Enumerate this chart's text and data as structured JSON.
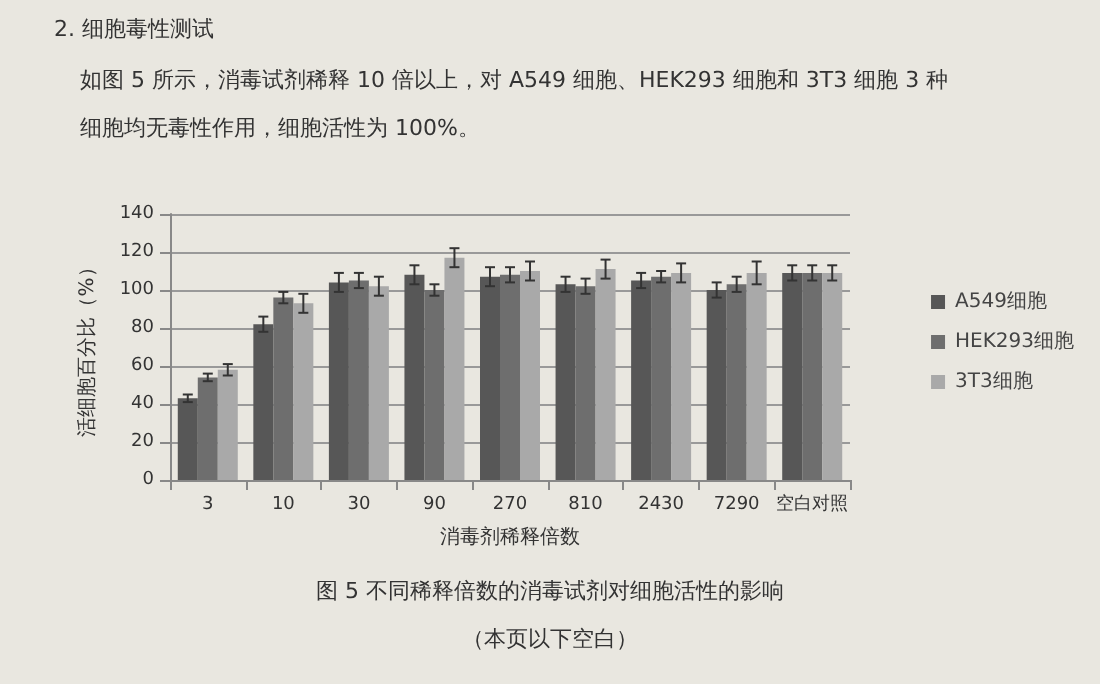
{
  "chart_data": {
    "type": "bar",
    "title": "2. 细胞毒性测试",
    "subtitle": "如图 5 所示，消毒试剂稀释 10 倍以上，对 A549 细胞、HEK293 细胞和 3T3 细胞 3 种细胞均无毒性作用，细胞活性为 100%。",
    "xlabel": "消毒剂稀释倍数",
    "ylabel": "活细胞百分比（%）",
    "categories": [
      "3",
      "10",
      "30",
      "90",
      "270",
      "810",
      "2430",
      "7290",
      "空白对照"
    ],
    "series": [
      {
        "name": "A549细胞",
        "color": "#575757",
        "values": [
          43,
          82,
          104,
          108,
          107,
          103,
          105,
          100,
          109
        ],
        "errors": [
          2,
          4,
          5,
          5,
          5,
          4,
          4,
          4,
          4
        ]
      },
      {
        "name": "HEK293细胞",
        "color": "#6e6e6e",
        "values": [
          54,
          96,
          105,
          100,
          108,
          102,
          107,
          103,
          109
        ],
        "errors": [
          2,
          3,
          4,
          3,
          4,
          4,
          3,
          4,
          4
        ]
      },
      {
        "name": "3T3细胞",
        "color": "#a9a9a9",
        "values": [
          58,
          93,
          102,
          117,
          110,
          111,
          109,
          109,
          109
        ],
        "errors": [
          3,
          5,
          5,
          5,
          5,
          5,
          5,
          6,
          4
        ]
      }
    ],
    "ylim": [
      0,
      140
    ],
    "yticks": [
      0,
      20,
      40,
      60,
      80,
      100,
      120,
      140
    ],
    "grid": "y",
    "legend": "right",
    "annotations": [
      "图 5 不同稀释倍数的消毒试剂对细胞活性的影响",
      "（本页以下空白）"
    ]
  }
}
